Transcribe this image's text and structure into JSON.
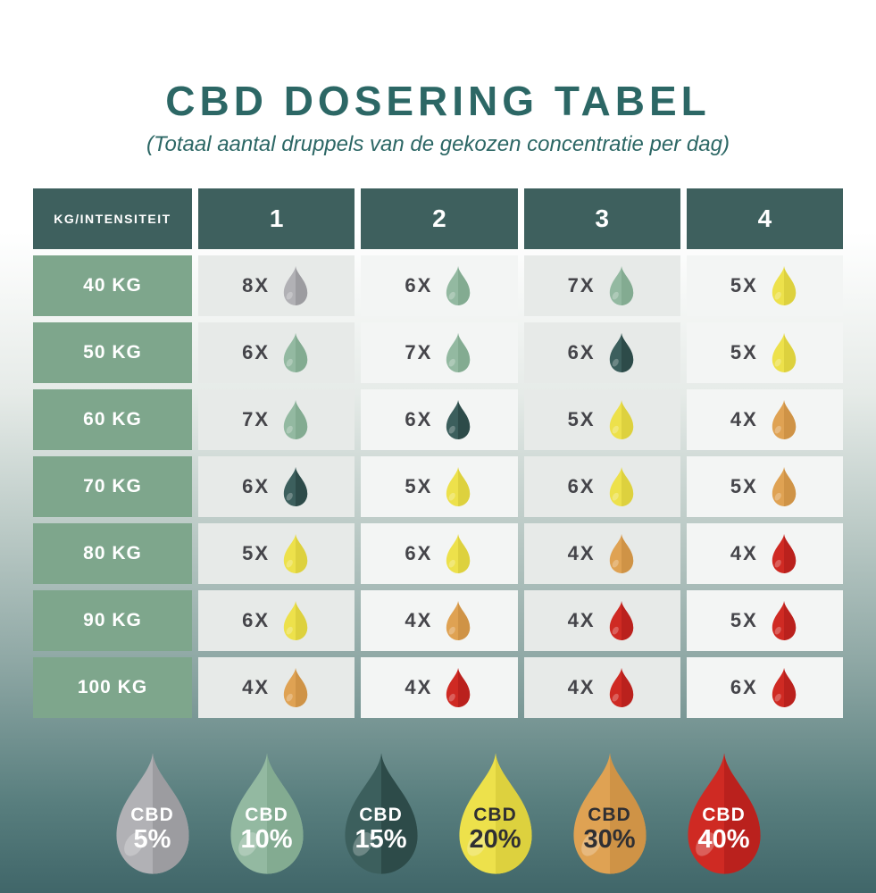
{
  "page": {
    "title": "CBD DOSERING TABEL",
    "subtitle": "(Totaal aantal druppels van de gekozen concentratie per dag)"
  },
  "chart_data": {
    "type": "table",
    "title": "CBD DOSERING TABEL",
    "subtitle": "(Totaal aantal druppels van de gekozen concentratie per dag)",
    "corner_header": "KG/INTENSITEIT",
    "columns": [
      "1",
      "2",
      "3",
      "4"
    ],
    "row_labels": [
      "40 KG",
      "50 KG",
      "60 KG",
      "70 KG",
      "80 KG",
      "90 KG",
      "100 KG"
    ],
    "cells": [
      [
        {
          "count": "8X",
          "drops": 8,
          "cbd": "5%"
        },
        {
          "count": "6X",
          "drops": 6,
          "cbd": "10%"
        },
        {
          "count": "7X",
          "drops": 7,
          "cbd": "10%"
        },
        {
          "count": "5X",
          "drops": 5,
          "cbd": "20%"
        }
      ],
      [
        {
          "count": "6X",
          "drops": 6,
          "cbd": "10%"
        },
        {
          "count": "7X",
          "drops": 7,
          "cbd": "10%"
        },
        {
          "count": "6X",
          "drops": 6,
          "cbd": "15%"
        },
        {
          "count": "5X",
          "drops": 5,
          "cbd": "20%"
        }
      ],
      [
        {
          "count": "7X",
          "drops": 7,
          "cbd": "10%"
        },
        {
          "count": "6X",
          "drops": 6,
          "cbd": "15%"
        },
        {
          "count": "5X",
          "drops": 5,
          "cbd": "20%"
        },
        {
          "count": "4X",
          "drops": 4,
          "cbd": "30%"
        }
      ],
      [
        {
          "count": "6X",
          "drops": 6,
          "cbd": "15%"
        },
        {
          "count": "5X",
          "drops": 5,
          "cbd": "20%"
        },
        {
          "count": "6X",
          "drops": 6,
          "cbd": "20%"
        },
        {
          "count": "5X",
          "drops": 5,
          "cbd": "30%"
        }
      ],
      [
        {
          "count": "5X",
          "drops": 5,
          "cbd": "20%"
        },
        {
          "count": "6X",
          "drops": 6,
          "cbd": "20%"
        },
        {
          "count": "4X",
          "drops": 4,
          "cbd": "30%"
        },
        {
          "count": "4X",
          "drops": 4,
          "cbd": "40%"
        }
      ],
      [
        {
          "count": "6X",
          "drops": 6,
          "cbd": "20%"
        },
        {
          "count": "4X",
          "drops": 4,
          "cbd": "30%"
        },
        {
          "count": "4X",
          "drops": 4,
          "cbd": "40%"
        },
        {
          "count": "5X",
          "drops": 5,
          "cbd": "40%"
        }
      ],
      [
        {
          "count": "4X",
          "drops": 4,
          "cbd": "30%"
        },
        {
          "count": "4X",
          "drops": 4,
          "cbd": "40%"
        },
        {
          "count": "4X",
          "drops": 4,
          "cbd": "40%"
        },
        {
          "count": "6X",
          "drops": 6,
          "cbd": "40%"
        }
      ]
    ],
    "legend": [
      {
        "line1": "CBD",
        "line2": "5%",
        "cbd": "5%"
      },
      {
        "line1": "CBD",
        "line2": "10%",
        "cbd": "10%"
      },
      {
        "line1": "CBD",
        "line2": "15%",
        "cbd": "15%"
      },
      {
        "line1": "CBD",
        "line2": "20%",
        "cbd": "20%"
      },
      {
        "line1": "CBD",
        "line2": "30%",
        "cbd": "30%"
      },
      {
        "line1": "CBD",
        "line2": "40%",
        "cbd": "40%"
      }
    ]
  },
  "colors": {
    "title_ink": "#2c6765",
    "header_bg": "#3e605e",
    "row_label_bg": "#7ea68c",
    "cell_bg_dark": "#e7eae8",
    "cell_bg_light": "#f3f5f4",
    "cell_text": "#45454a",
    "drops": {
      "5%": {
        "base": "#b1b1b5",
        "dark": "#9c9ca0",
        "label": "#ffffff"
      },
      "10%": {
        "base": "#93b9a1",
        "dark": "#83ab91",
        "label": "#ffffff"
      },
      "15%": {
        "base": "#3c5f5d",
        "dark": "#2d4b49",
        "label": "#ffffff"
      },
      "20%": {
        "base": "#ede14b",
        "dark": "#ddd13e",
        "label": "#2f2f33"
      },
      "30%": {
        "base": "#dfa253",
        "dark": "#cf9346",
        "label": "#2f2f33"
      },
      "40%": {
        "base": "#cf2a23",
        "dark": "#ba211d",
        "label": "#ffffff"
      }
    },
    "background_top": "#ffffff",
    "background_bottom": "#406669"
  }
}
